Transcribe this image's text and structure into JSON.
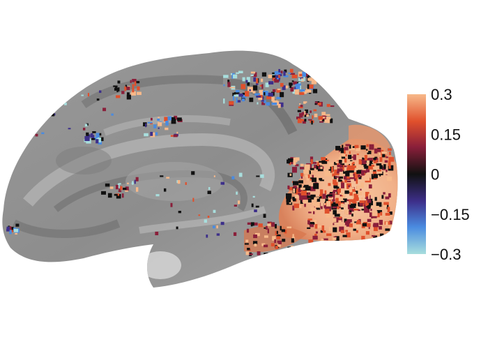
{
  "figure": {
    "colormap": [
      "#a8dedd",
      "#4a8be0",
      "#3d2f8a",
      "#111111",
      "#8a1f3a",
      "#e0502c",
      "#f7b98a"
    ]
  },
  "colorbar": {
    "ticks": [
      {
        "label": "0.3",
        "value": 0.3
      },
      {
        "label": "0.15",
        "value": 0.15
      },
      {
        "label": "0",
        "value": 0
      },
      {
        "label": "−0.15",
        "value": -0.15
      },
      {
        "label": "−0.3",
        "value": -0.3
      }
    ],
    "range": [
      -0.3,
      0.3
    ]
  }
}
